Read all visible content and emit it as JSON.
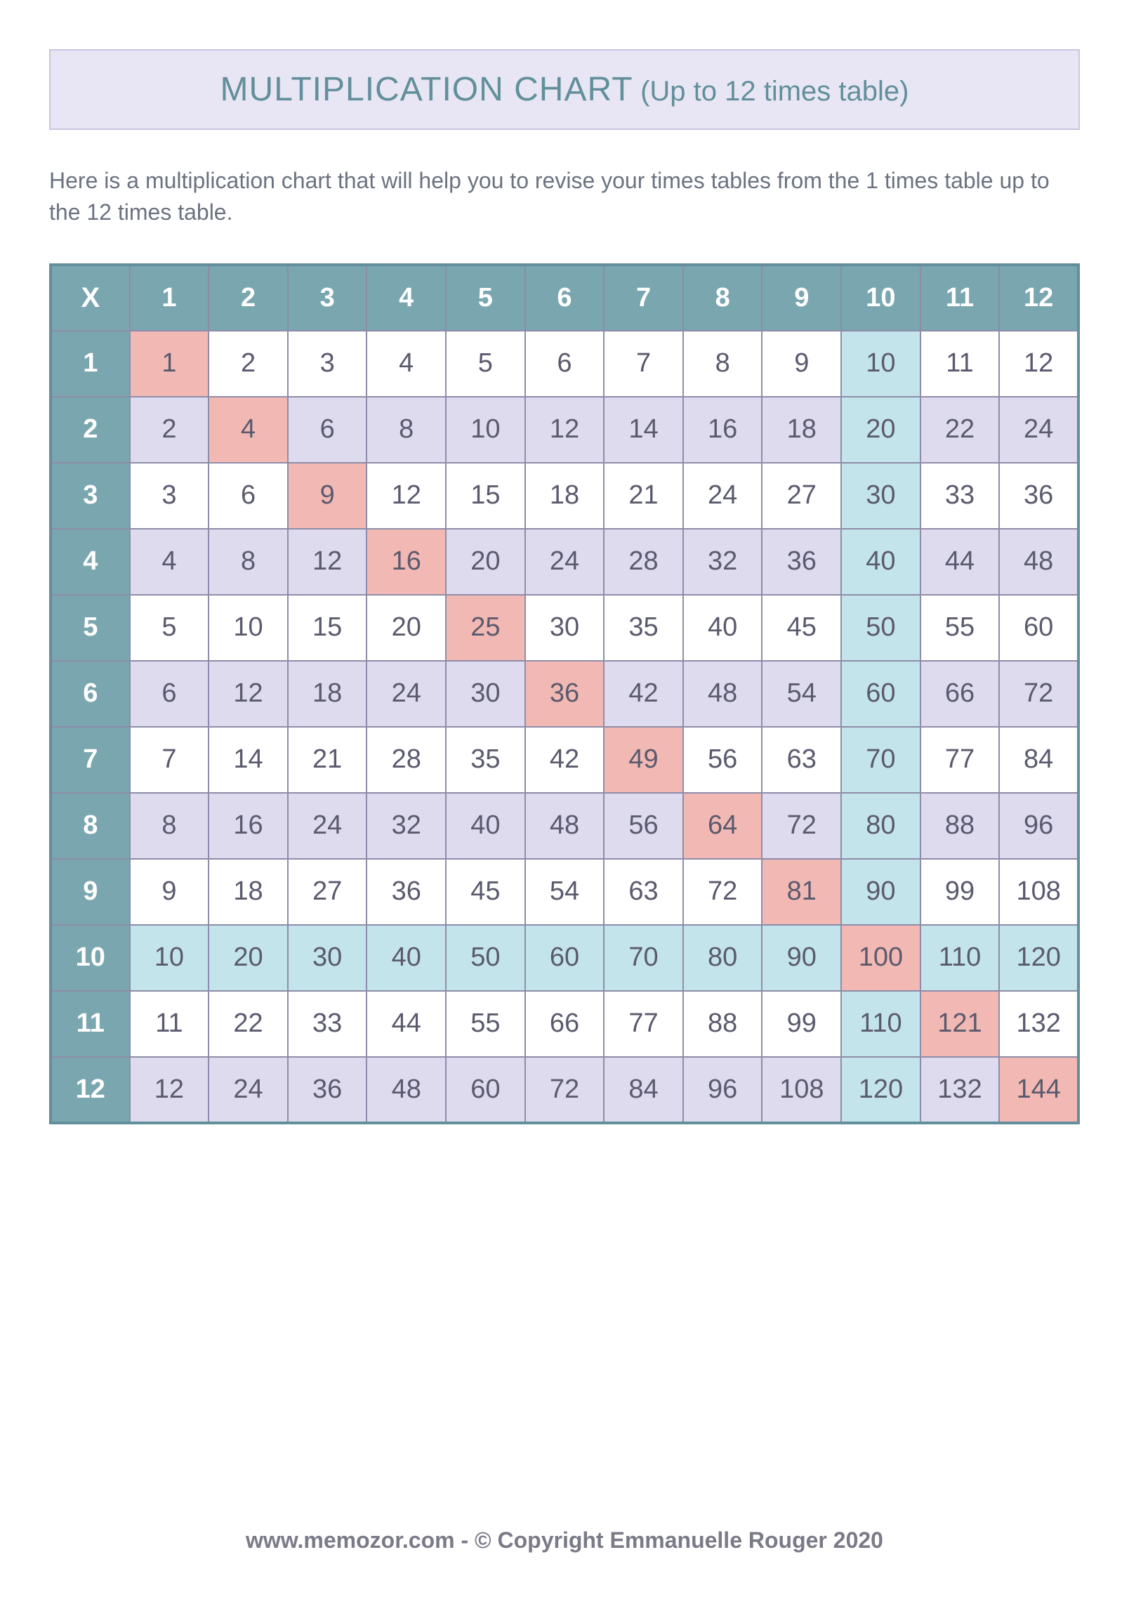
{
  "title": {
    "main": "MULTIPLICATION CHART",
    "sub": "(Up to 12 times table)",
    "bg_color": "#e8e6f4",
    "border_color": "#c8c6e0",
    "text_color": "#628f9b",
    "main_fontsize": 48,
    "sub_fontsize": 40
  },
  "intro": {
    "text": "Here is a multiplication chart that will help you to revise your times tables from the 1 times table up to the 12 times table.",
    "color": "#6b7280",
    "fontsize": 32
  },
  "chart": {
    "type": "table",
    "corner_label": "X",
    "size": 12,
    "col_headers": [
      "1",
      "2",
      "3",
      "4",
      "5",
      "6",
      "7",
      "8",
      "9",
      "10",
      "11",
      "12"
    ],
    "row_headers": [
      "1",
      "2",
      "3",
      "4",
      "5",
      "6",
      "7",
      "8",
      "9",
      "10",
      "11",
      "12"
    ],
    "header_bg": "#7aa6b0",
    "header_text_color": "#ffffff",
    "border_outer": "#628f9b",
    "border_inner": "#8e8ca8",
    "cell_text_color": "#5a5a6e",
    "cell_fontsize": 38,
    "colors": {
      "white": "#ffffff",
      "lavender": "#dedbef",
      "lightblue": "#c4e4eb",
      "pink": "#f2b9b4"
    },
    "color_rules": {
      "diagonal": "pink",
      "row_10": "lightblue",
      "col_10": "lightblue",
      "even_row_default": "lavender",
      "odd_row_default": "white"
    }
  },
  "footer": {
    "text": "www.memozor.com - © Copyright Emmanuelle Rouger 2020",
    "color": "#7a7a88",
    "fontsize": 32
  }
}
